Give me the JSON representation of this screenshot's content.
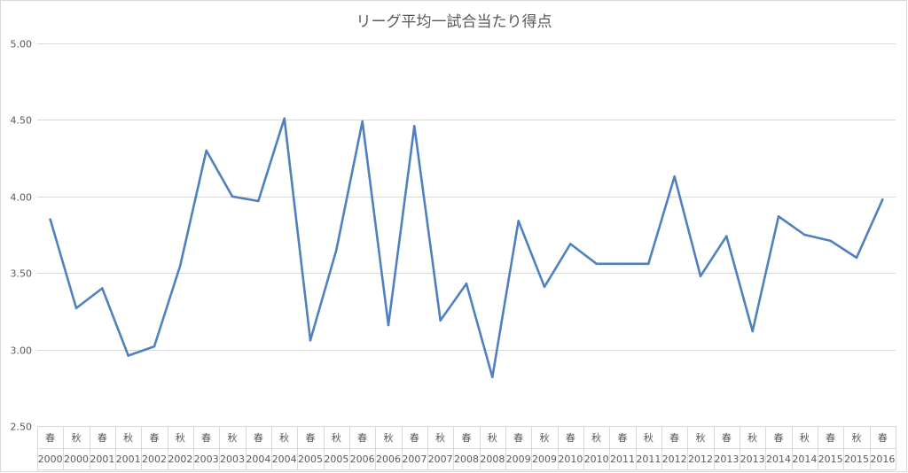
{
  "chart_data": {
    "type": "line",
    "title": "リーグ平均一試合当たり得点",
    "xlabel": "",
    "ylabel": "",
    "ylim": [
      2.5,
      5.0
    ],
    "yticks": [
      "2.50",
      "3.00",
      "3.50",
      "4.00",
      "4.50",
      "5.00"
    ],
    "grid": true,
    "legend": "none",
    "colors": {
      "series": "#5080bd",
      "grid": "#d9d9d9",
      "text": "#595959"
    },
    "categories": [
      {
        "season": "春",
        "year": "2000"
      },
      {
        "season": "秋",
        "year": "2000"
      },
      {
        "season": "春",
        "year": "2001"
      },
      {
        "season": "秋",
        "year": "2001"
      },
      {
        "season": "春",
        "year": "2002"
      },
      {
        "season": "秋",
        "year": "2002"
      },
      {
        "season": "春",
        "year": "2003"
      },
      {
        "season": "秋",
        "year": "2003"
      },
      {
        "season": "春",
        "year": "2004"
      },
      {
        "season": "秋",
        "year": "2004"
      },
      {
        "season": "春",
        "year": "2005"
      },
      {
        "season": "秋",
        "year": "2005"
      },
      {
        "season": "春",
        "year": "2006"
      },
      {
        "season": "秋",
        "year": "2006"
      },
      {
        "season": "春",
        "year": "2007"
      },
      {
        "season": "秋",
        "year": "2007"
      },
      {
        "season": "春",
        "year": "2008"
      },
      {
        "season": "秋",
        "year": "2008"
      },
      {
        "season": "春",
        "year": "2009"
      },
      {
        "season": "秋",
        "year": "2009"
      },
      {
        "season": "春",
        "year": "2010"
      },
      {
        "season": "秋",
        "year": "2010"
      },
      {
        "season": "春",
        "year": "2011"
      },
      {
        "season": "秋",
        "year": "2011"
      },
      {
        "season": "春",
        "year": "2012"
      },
      {
        "season": "秋",
        "year": "2012"
      },
      {
        "season": "春",
        "year": "2013"
      },
      {
        "season": "秋",
        "year": "2013"
      },
      {
        "season": "春",
        "year": "2014"
      },
      {
        "season": "秋",
        "year": "2014"
      },
      {
        "season": "春",
        "year": "2015"
      },
      {
        "season": "秋",
        "year": "2015"
      },
      {
        "season": "春",
        "year": "2016"
      }
    ],
    "series": [
      {
        "values": [
          3.85,
          3.27,
          3.4,
          2.96,
          3.02,
          3.55,
          4.3,
          4.0,
          3.97,
          4.51,
          3.06,
          3.65,
          4.49,
          3.16,
          4.46,
          3.19,
          3.43,
          2.82,
          3.84,
          3.41,
          3.69,
          3.56,
          3.56,
          3.56,
          4.13,
          3.48,
          3.74,
          3.12,
          3.87,
          3.75,
          3.71,
          3.6,
          3.98
        ]
      }
    ]
  }
}
